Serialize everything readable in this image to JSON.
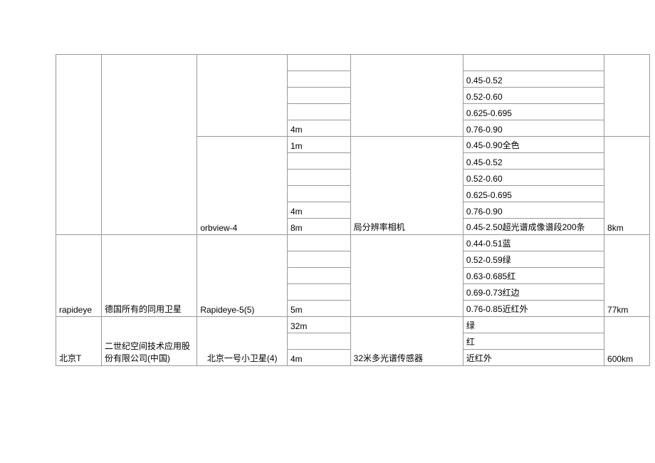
{
  "type": "table",
  "background_color": "#ffffff",
  "border_color": "#999999",
  "text_color": "#000000",
  "font_size": 12,
  "satellites": [
    {
      "name": "",
      "owner": "",
      "model": "",
      "rows_top": [
        {
          "res": "",
          "sensor": "",
          "band": "",
          "swath": ""
        },
        {
          "res": "",
          "sensor": "",
          "band": "0.45-0.52",
          "swath": ""
        },
        {
          "res": "",
          "sensor": "",
          "band": "0.52-0.60",
          "swath": ""
        },
        {
          "res": "",
          "sensor": "",
          "band": "0.625-0.695",
          "swath": ""
        },
        {
          "res": "4m",
          "sensor": "",
          "band": "0.76-0.90",
          "swath": ""
        }
      ],
      "model2": "orbview-4",
      "rows_mid": [
        {
          "res": "1m",
          "sensor": "",
          "band": "0.45-0.90全色",
          "swath": ""
        },
        {
          "res": "",
          "sensor": "",
          "band": "0.45-0.52",
          "swath": ""
        },
        {
          "res": "",
          "sensor": "",
          "band": "0.52-0.60",
          "swath": ""
        },
        {
          "res": "",
          "sensor": "",
          "band": "0.625-0.695",
          "swath": ""
        },
        {
          "res": "4m",
          "sensor": "",
          "band": "0.76-0.90",
          "swath": ""
        },
        {
          "res": "8m",
          "sensor": "局分辨率相机",
          "band": "0.45-2.50超光谱成像谱段200条",
          "swath": "8km"
        }
      ]
    },
    {
      "name": "rapideye",
      "owner": "德国所有的同用卫星",
      "model": "Rapideye-5(5)",
      "rows": [
        {
          "res": "",
          "sensor": "",
          "band": "0.44-0.51蓝",
          "swath": ""
        },
        {
          "res": "",
          "sensor": "",
          "band": "0.52-0.59绿",
          "swath": ""
        },
        {
          "res": "",
          "sensor": "",
          "band": "0.63-0.685红",
          "swath": ""
        },
        {
          "res": "",
          "sensor": "",
          "band": "0.69-0.73红边",
          "swath": ""
        },
        {
          "res": "5m",
          "sensor": "",
          "band": "0.76-0.85近红外",
          "swath": "77km"
        }
      ]
    },
    {
      "name": "北京T",
      "owner": "二世纪空间技术应用股份有限公司(中国)",
      "model": "北京一号小卫星(4)",
      "rows": [
        {
          "res": "32m",
          "sensor": "",
          "band": "绿",
          "swath": ""
        },
        {
          "res": "",
          "sensor": "",
          "band": "红",
          "swath": ""
        },
        {
          "res": "4m",
          "sensor": "32米多光谱传感器",
          "band": "近红外",
          "swath": "600km"
        }
      ]
    }
  ]
}
